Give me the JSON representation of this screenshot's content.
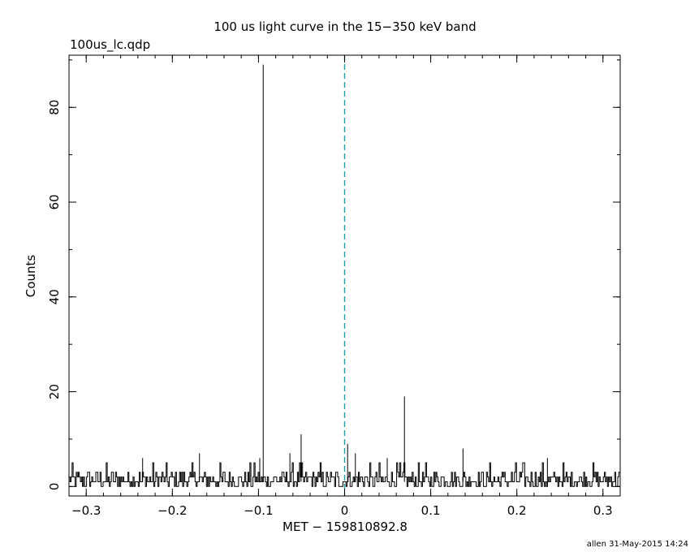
{
  "file_label": "100us_lc.qdp",
  "footer": "allen 31-May-2015 14:24",
  "chart_data": {
    "type": "line",
    "title": "100 us light curve in the 15−350 keV band",
    "xlabel": "MET − 159810892.8",
    "ylabel": "Counts",
    "xlim": [
      -0.32,
      0.32
    ],
    "ylim": [
      -2,
      91
    ],
    "xticks": [
      -0.3,
      -0.2,
      -0.1,
      0,
      0.1,
      0.2,
      0.3
    ],
    "xtick_labels": [
      "−0.3",
      "−0.2",
      "−0.1",
      "0",
      "0.1",
      "0.2",
      "0.3"
    ],
    "yticks": [
      0,
      20,
      40,
      60,
      80
    ],
    "ytick_labels": [
      "0",
      "20",
      "40",
      "60",
      "80"
    ],
    "grid": false,
    "line_color": "#000000",
    "reference_line": {
      "x": 0,
      "style": "dashed",
      "color": "#1fa0a8"
    },
    "baseline_level": [
      0,
      5
    ],
    "spikes": [
      {
        "x": -0.0945,
        "y": 89
      },
      {
        "x": -0.0505,
        "y": 11
      },
      {
        "x": 0.0035,
        "y": 9
      },
      {
        "x": 0.0125,
        "y": 7
      },
      {
        "x": 0.0695,
        "y": 19
      },
      {
        "x": -0.1685,
        "y": 7
      },
      {
        "x": 0.1375,
        "y": 8
      },
      {
        "x": -0.0635,
        "y": 7
      },
      {
        "x": -0.0985,
        "y": 6
      },
      {
        "x": 0.0495,
        "y": 6
      },
      {
        "x": -0.2345,
        "y": 6
      },
      {
        "x": 0.2355,
        "y": 6
      }
    ]
  }
}
